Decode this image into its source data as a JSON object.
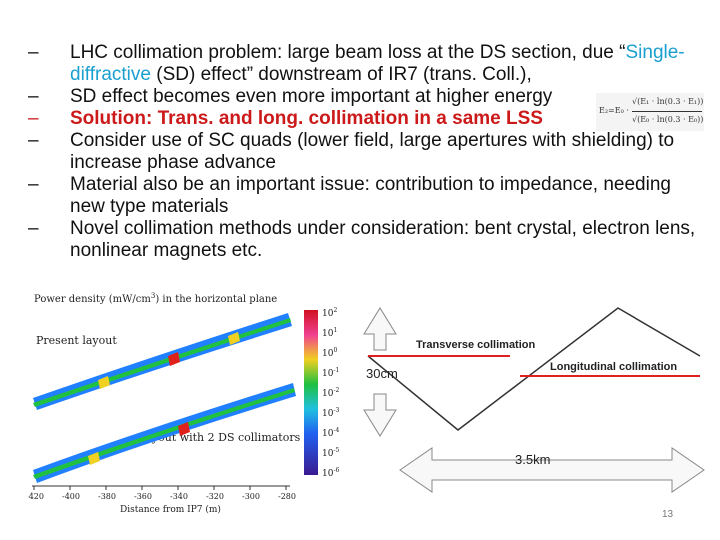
{
  "bullets": [
    {
      "dash": "–",
      "pre": "LHC collimation problem: large beam loss at the DS section, due “",
      "highlight": "Single-diffractive",
      "post": " (SD) effect” downstream of IR7 (trans. Coll.),"
    },
    {
      "dash": "–",
      "text": "SD effect becomes even more important at higher energy"
    },
    {
      "dash": "–",
      "text": "Solution: Trans. and long. collimation in a same LSS"
    },
    {
      "dash": "–",
      "text": "Consider use of SC quads (lower field, large apertures with shielding) to increase phase advance"
    },
    {
      "dash": "–",
      "text": "Material also be an important issue:  contribution to impedance, needing new type materials"
    },
    {
      "dash": "–",
      "text": "Novel collimation methods under consideration: bent crystal, electron lens, nonlinear magnets etc."
    }
  ],
  "formula": {
    "lhs": "E₂=E₀ ·",
    "num": "√(E₁ · ln(0.3 · E₁))",
    "den": "√(E₀ · ln(0.3 · E₀))"
  },
  "figure": {
    "title_pre": "Power density (mW/cm",
    "title_sup": "3",
    "title_post": ") in the horizontal plane",
    "label_present": "Present layout",
    "label_ds": "Layout with 2 DS collimators",
    "xlabel": "Distance from IP7 (m)",
    "xticks": [
      "-420",
      "-400",
      "-380",
      "-360",
      "-340",
      "-320",
      "-300",
      "-280"
    ],
    "cbar_ticks": [
      "10²",
      "10¹",
      "10⁰",
      "10⁻¹",
      "10⁻²",
      "10⁻³",
      "10⁻⁴",
      "10⁻⁵",
      "10⁻⁶"
    ],
    "cbar_ticks_main": [
      "10",
      "10",
      "10",
      "10",
      "10",
      "10",
      "10",
      "10",
      "10"
    ],
    "cbar_ticks_exp": [
      "2",
      "1",
      "0",
      "-1",
      "-2",
      "-3",
      "-4",
      "-5",
      "-6"
    ],
    "colors": {
      "hot": "#e0201a",
      "warm": "#f0d020",
      "mid": "#20c040",
      "cool": "#2080ff",
      "cold": "#1a1aa0"
    }
  },
  "diagram": {
    "transverse": "Transverse collimation",
    "longitudinal": "Longitudinal collimation",
    "dim_30cm": "30cm",
    "dim_35km": "3.5km",
    "line_color": "#e02020"
  },
  "page_number": "13"
}
